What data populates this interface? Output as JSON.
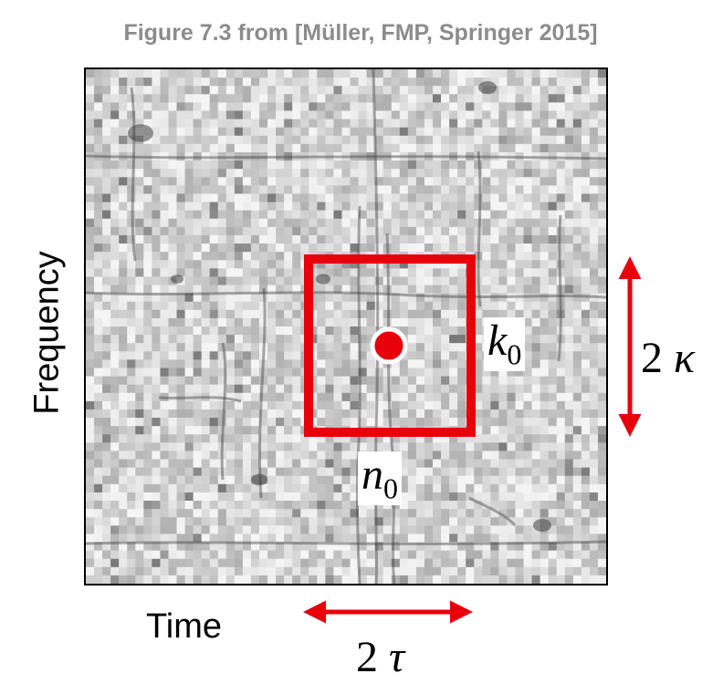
{
  "caption": "Figure 7.3 from [Müller, FMP, Springer 2015]",
  "axes": {
    "y_label": "Frequency",
    "x_label": "Time"
  },
  "labels": {
    "k0_base": "k",
    "k0_sub": "0",
    "n0_base": "n",
    "n0_sub": "0",
    "kappa_num": "2",
    "kappa_sym": "κ",
    "tau_num": "2",
    "tau_sym": "τ"
  },
  "colors": {
    "highlight": "#e8000b",
    "caption": "#8c8c8c"
  }
}
